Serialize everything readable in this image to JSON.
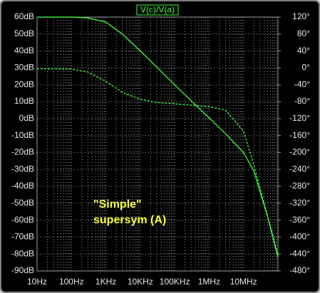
{
  "chart_data": {
    "type": "line",
    "title": "V(c)/V(a)",
    "annotation": [
      "\"Simple\"",
      "supersym (A)"
    ],
    "annotation_color": "#ffff40",
    "x": [
      10,
      100,
      300,
      1000,
      3000,
      10000,
      30000,
      100000,
      300000,
      1000000,
      3000000,
      10000000,
      20000000,
      50000000,
      100000000
    ],
    "series": [
      {
        "name": "magnitude",
        "color": "#40ff40",
        "dashed": false,
        "values": [
          60,
          60,
          59.5,
          57,
          50,
          40,
          30.5,
          20,
          10.5,
          0.5,
          -9,
          -20,
          -31,
          -58,
          -82
        ]
      },
      {
        "name": "phase",
        "color": "#40ff40",
        "dashed": true,
        "axis": "y2",
        "values": [
          -2,
          -3,
          -10,
          -32,
          -58,
          -74,
          -82,
          -85,
          -88,
          -92,
          -100,
          -150,
          -230,
          -350,
          -440
        ]
      }
    ],
    "xlog": true,
    "xlim": [
      10,
      100000000
    ],
    "xticks": [
      {
        "value": 10,
        "label": "10Hz"
      },
      {
        "value": 100,
        "label": "100Hz"
      },
      {
        "value": 1000,
        "label": "1KHz"
      },
      {
        "value": 10000,
        "label": "10KHz"
      },
      {
        "value": 100000,
        "label": "100KHz"
      },
      {
        "value": 1000000,
        "label": "1MHz"
      },
      {
        "value": 10000000,
        "label": "10MHz"
      }
    ],
    "ylim": [
      -90,
      60
    ],
    "yticks": [
      {
        "value": 60,
        "label": "60dB"
      },
      {
        "value": 50,
        "label": "50dB"
      },
      {
        "value": 40,
        "label": "40dB"
      },
      {
        "value": 30,
        "label": "30dB"
      },
      {
        "value": 20,
        "label": "20dB"
      },
      {
        "value": 10,
        "label": "10dB"
      },
      {
        "value": 0,
        "label": "0dB"
      },
      {
        "value": -10,
        "label": "-10dB"
      },
      {
        "value": -20,
        "label": "-20dB"
      },
      {
        "value": -30,
        "label": "-30dB"
      },
      {
        "value": -40,
        "label": "-40dB"
      },
      {
        "value": -50,
        "label": "-50dB"
      },
      {
        "value": -60,
        "label": "-60dB"
      },
      {
        "value": -70,
        "label": "-70dB"
      },
      {
        "value": -80,
        "label": "-80dB"
      },
      {
        "value": -90,
        "label": "-90dB"
      }
    ],
    "y2lim": [
      -480,
      120
    ],
    "y2ticks": [
      {
        "value": 120,
        "label": "120°"
      },
      {
        "value": 80,
        "label": "80°"
      },
      {
        "value": 40,
        "label": "40°"
      },
      {
        "value": 0,
        "label": "0°"
      },
      {
        "value": -40,
        "label": "-40°"
      },
      {
        "value": -80,
        "label": "-80°"
      },
      {
        "value": -120,
        "label": "-120°"
      },
      {
        "value": -160,
        "label": "-160°"
      },
      {
        "value": -200,
        "label": "-200°"
      },
      {
        "value": -240,
        "label": "-240°"
      },
      {
        "value": -280,
        "label": "-280°"
      },
      {
        "value": -320,
        "label": "-320°"
      },
      {
        "value": -360,
        "label": "-360°"
      },
      {
        "value": -400,
        "label": "-400°"
      },
      {
        "value": -440,
        "label": "-440°"
      },
      {
        "value": -480,
        "label": "-480°"
      }
    ],
    "grid": true
  }
}
